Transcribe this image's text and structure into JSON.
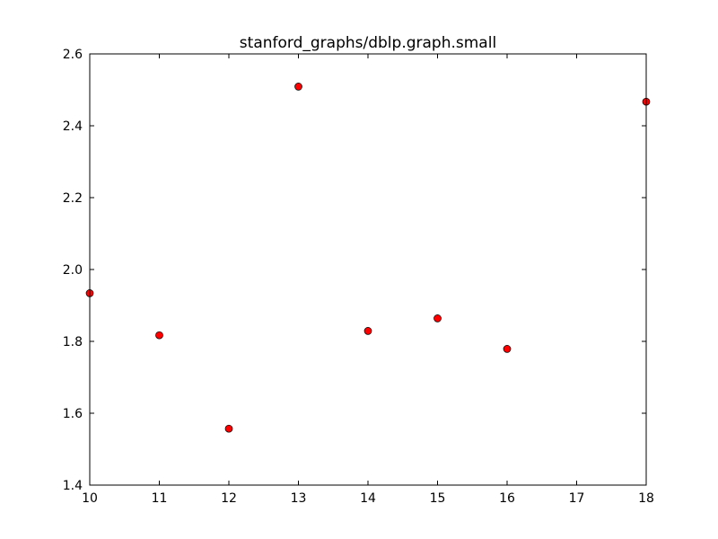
{
  "chart_data": {
    "type": "scatter",
    "title": "stanford_graphs/dblp.graph.small",
    "xlabel": "",
    "ylabel": "",
    "xlim": [
      10,
      18
    ],
    "ylim": [
      1.4,
      2.6
    ],
    "xticks": [
      "10",
      "11",
      "12",
      "13",
      "14",
      "15",
      "16",
      "17",
      "18"
    ],
    "yticks": [
      "1.4",
      "1.6",
      "1.8",
      "2.0",
      "2.2",
      "2.4",
      "2.6"
    ],
    "grid": false,
    "series": [
      {
        "color": "#ff0000",
        "marker": "circle",
        "points": [
          {
            "x": 10,
            "y": 1.934
          },
          {
            "x": 11,
            "y": 1.817
          },
          {
            "x": 12,
            "y": 1.557
          },
          {
            "x": 13,
            "y": 2.509
          },
          {
            "x": 14,
            "y": 1.829
          },
          {
            "x": 15,
            "y": 1.864
          },
          {
            "x": 16,
            "y": 1.779
          },
          {
            "x": 18,
            "y": 2.467
          }
        ]
      }
    ]
  }
}
